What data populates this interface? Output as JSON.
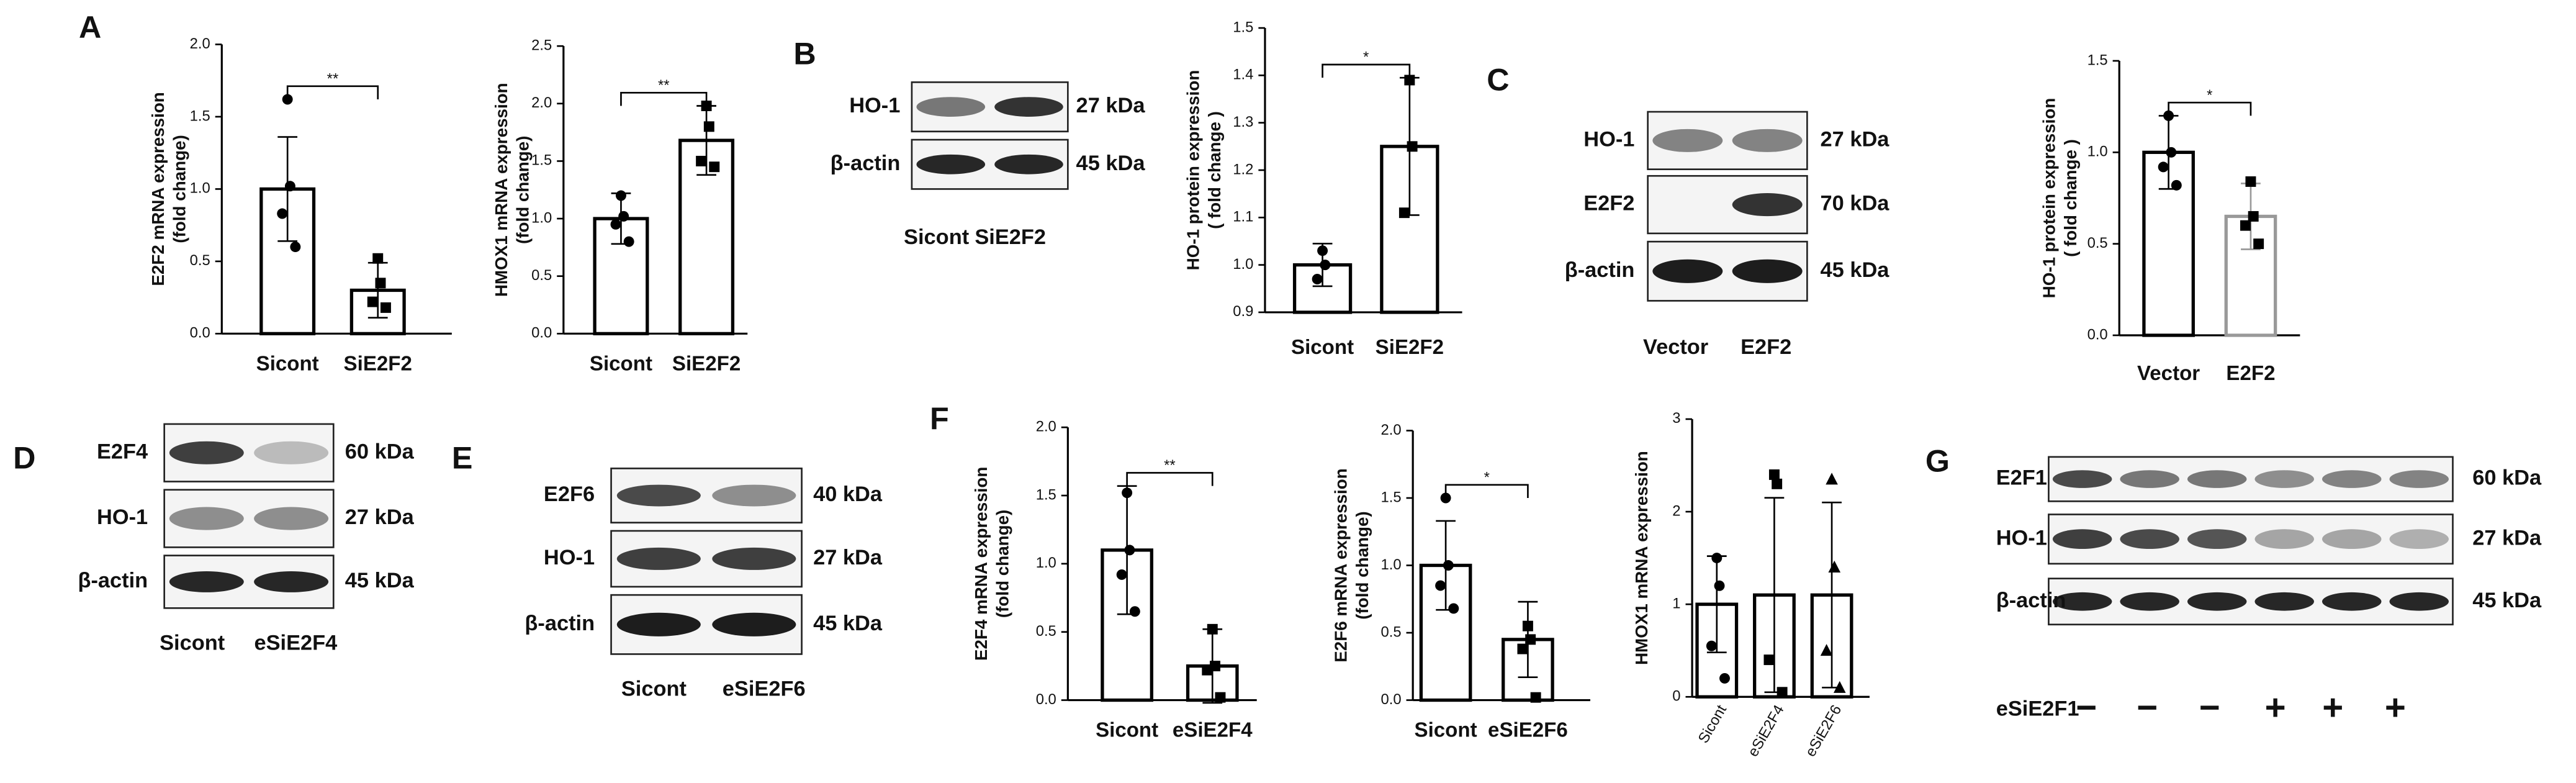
{
  "panel_labels": [
    "A",
    "B",
    "C",
    "D",
    "E",
    "F",
    "G"
  ],
  "chart_data": [
    {
      "type": "bar",
      "ylabel": [
        "E2F2 mRNA expression",
        "(fold change)"
      ],
      "categories": [
        "Sicont",
        "SiE2F2"
      ],
      "values": [
        1.0,
        0.3
      ],
      "errors": [
        0.36,
        0.19
      ],
      "points": [
        [
          1.62,
          1.02,
          0.83,
          0.6
        ],
        [
          0.52,
          0.35,
          0.22,
          0.18
        ]
      ],
      "colors": [
        "#000000",
        "#000000"
      ],
      "annotation": "**",
      "ylim": [
        0,
        2
      ],
      "yticks": [
        {
          "value": 0,
          "label": "0.0"
        },
        {
          "value": 0.5,
          "label": "0.5"
        },
        {
          "value": 1,
          "label": "1.0"
        },
        {
          "value": 1.5,
          "label": "1.5"
        },
        {
          "value": 2,
          "label": "2.0"
        }
      ]
    },
    {
      "type": "bar",
      "ylabel": [
        "HMOX1 mRNA expression",
        "(fold change)"
      ],
      "categories": [
        "Sicont",
        "SiE2F2"
      ],
      "values": [
        1.0,
        1.68
      ],
      "errors": [
        0.22,
        0.3
      ],
      "points": [
        [
          1.2,
          1.02,
          0.95,
          0.8
        ],
        [
          1.98,
          1.8,
          1.5,
          1.45
        ]
      ],
      "colors": [
        "#000000",
        "#000000"
      ],
      "annotation": "**",
      "ylim": [
        0,
        2.5
      ],
      "yticks": [
        {
          "value": 0,
          "label": "0.0"
        },
        {
          "value": 0.5,
          "label": "0.5"
        },
        {
          "value": 1,
          "label": "1.0"
        },
        {
          "value": 1.5,
          "label": "1.5"
        },
        {
          "value": 2,
          "label": "2.0"
        },
        {
          "value": 2.5,
          "label": "2.5"
        }
      ]
    },
    {
      "type": "bar",
      "ylabel": [
        "HO-1 protein expression",
        "( fold change )"
      ],
      "categories": [
        "Sicont",
        "SiE2F2"
      ],
      "values": [
        1.0,
        1.25
      ],
      "errors": [
        0.045,
        0.145
      ],
      "points": [
        [
          1.03,
          1.0,
          0.97
        ],
        [
          1.39,
          1.25,
          1.11
        ]
      ],
      "colors": [
        "#000000",
        "#000000"
      ],
      "annotation": "*",
      "ylim": [
        0.9,
        1.5
      ],
      "yticks": [
        {
          "value": 0.9,
          "label": "0.9"
        },
        {
          "value": 1,
          "label": "1.0"
        },
        {
          "value": 1.1,
          "label": "1.1"
        },
        {
          "value": 1.2,
          "label": "1.2"
        },
        {
          "value": 1.3,
          "label": "1.3"
        },
        {
          "value": 1.4,
          "label": "1.4"
        },
        {
          "value": 1.5,
          "label": "1.5"
        }
      ]
    },
    {
      "type": "bar",
      "ylabel": [
        "HO-1 protein expression",
        "( fold change )"
      ],
      "categories": [
        "Vector",
        "E2F2"
      ],
      "values": [
        1.0,
        0.65
      ],
      "errors": [
        0.2,
        0.18
      ],
      "points": [
        [
          1.2,
          1.0,
          0.92,
          0.82
        ],
        [
          0.84,
          0.65,
          0.6,
          0.5
        ]
      ],
      "colors": [
        "#000000",
        "#999999"
      ],
      "annotation": "*",
      "ylim": [
        0,
        1.5
      ],
      "yticks": [
        {
          "value": 0,
          "label": "0.0"
        },
        {
          "value": 0.5,
          "label": "0.5"
        },
        {
          "value": 1,
          "label": "1.0"
        },
        {
          "value": 1.5,
          "label": "1.5"
        }
      ]
    },
    {
      "type": "bar",
      "ylabel": [
        "E2F4 mRNA expression",
        "(fold change)"
      ],
      "categories": [
        "Sicont",
        "eSiE2F4"
      ],
      "values": [
        1.1,
        0.25
      ],
      "errors": [
        0.47,
        0.27
      ],
      "points": [
        [
          1.52,
          1.1,
          0.92,
          0.65
        ],
        [
          0.52,
          0.25,
          0.22,
          0.02
        ]
      ],
      "colors": [
        "#000000",
        "#000000"
      ],
      "annotation": "**",
      "ylim": [
        0,
        2
      ],
      "yticks": [
        {
          "value": 0,
          "label": "0.0"
        },
        {
          "value": 0.5,
          "label": "0.5"
        },
        {
          "value": 1,
          "label": "1.0"
        },
        {
          "value": 1.5,
          "label": "1.5"
        },
        {
          "value": 2,
          "label": "2.0"
        }
      ]
    },
    {
      "type": "bar",
      "ylabel": [
        "E2F6 mRNA expression",
        "(fold change)"
      ],
      "categories": [
        "Sicont",
        "eSiE2F6"
      ],
      "values": [
        1.0,
        0.45
      ],
      "errors": [
        0.33,
        0.28
      ],
      "points": [
        [
          1.5,
          1.0,
          0.85,
          0.68
        ],
        [
          0.55,
          0.45,
          0.38,
          0.02
        ]
      ],
      "colors": [
        "#000000",
        "#000000"
      ],
      "annotation": "*",
      "ylim": [
        0,
        2
      ],
      "yticks": [
        {
          "value": 0,
          "label": "0.0"
        },
        {
          "value": 0.5,
          "label": "0.5"
        },
        {
          "value": 1,
          "label": "1.0"
        },
        {
          "value": 1.5,
          "label": "1.5"
        },
        {
          "value": 2,
          "label": "2.0"
        }
      ]
    },
    {
      "type": "bar",
      "ylabel": [
        "HMOX1 mRNA expression"
      ],
      "categories": [
        "Sicont",
        "eSiE2F4",
        "eSiE2F6"
      ],
      "values": [
        1.0,
        1.1,
        1.1
      ],
      "errors": [
        0.52,
        1.05,
        1.0
      ],
      "points": [
        [
          1.5,
          1.2,
          0.55,
          0.2
        ],
        [
          2.4,
          2.3,
          0.4,
          0.05
        ],
        [
          2.35,
          1.4,
          0.5,
          0.1
        ]
      ],
      "colors": [
        "#000000",
        "#000000",
        "#000000"
      ],
      "ylim": [
        0,
        3
      ],
      "yticks": [
        0,
        1,
        2,
        3
      ]
    }
  ],
  "blots": [
    {
      "rows": [
        {
          "label": "HO-1",
          "size": "27 kDa"
        },
        {
          "label": "β-actin",
          "size": "45 kDa"
        }
      ],
      "lanes": [
        "Sicont",
        "SiE2F2"
      ]
    },
    {
      "rows": [
        {
          "label": "HO-1",
          "size": "27 kDa"
        },
        {
          "label": "E2F2",
          "size": "70 kDa"
        },
        {
          "label": "β-actin",
          "size": "45 kDa"
        }
      ],
      "lanes": [
        "Vector",
        "E2F2"
      ]
    },
    {
      "rows": [
        {
          "label": "E2F4",
          "size": "60 kDa"
        },
        {
          "label": "HO-1",
          "size": "27 kDa"
        },
        {
          "label": "β-actin",
          "size": "45 kDa"
        }
      ],
      "lanes": [
        "Sicont",
        "eSiE2F4"
      ]
    },
    {
      "rows": [
        {
          "label": "E2F6",
          "size": "40 kDa"
        },
        {
          "label": "HO-1",
          "size": "27 kDa"
        },
        {
          "label": "β-actin",
          "size": "45 kDa"
        }
      ],
      "lanes": [
        "Sicont",
        "eSiE2F6"
      ]
    },
    {
      "rows": [
        {
          "label": "E2F1",
          "size": "60 kDa"
        },
        {
          "label": "HO-1",
          "size": "27 kDa"
        },
        {
          "label": "β-actin",
          "size": "45 kDa"
        }
      ],
      "treatment": "eSiE2F1",
      "lanes": [
        "−",
        "−",
        "−",
        "+",
        "+",
        "+"
      ]
    }
  ]
}
